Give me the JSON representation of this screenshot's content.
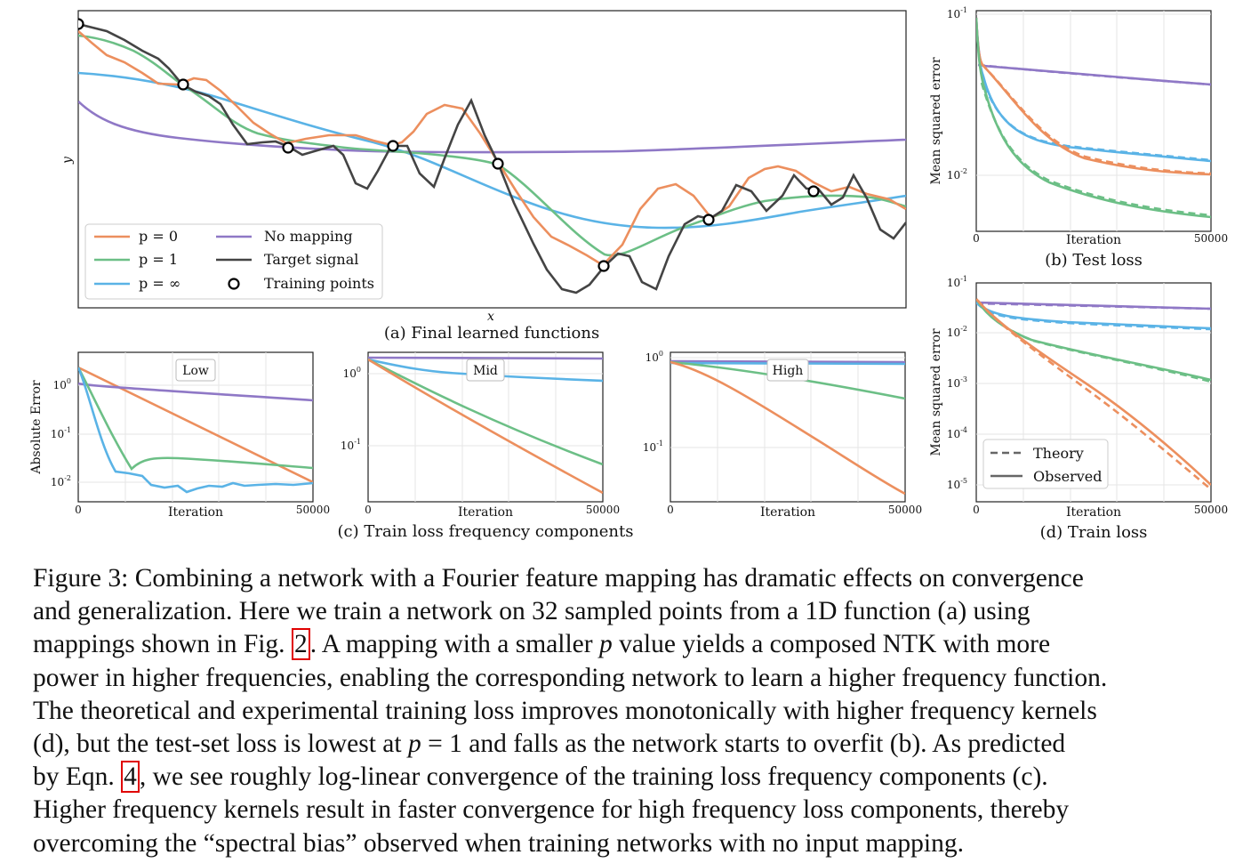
{
  "colors": {
    "p0": "#ec8f5e",
    "p1": "#6cbf86",
    "pinf": "#5ab3e6",
    "nomap": "#8f78c6",
    "target": "#444444",
    "frame": "#222222",
    "grid": "#e6e6e6",
    "ref_box": "#e00000"
  },
  "panel_a": {
    "xlabel": "x",
    "ylabel": "y",
    "caption": "(a) Final learned functions",
    "legend": [
      {
        "key": "p0",
        "label": "p = 0"
      },
      {
        "key": "nomap",
        "label": "No mapping"
      },
      {
        "key": "p1",
        "label": "p = 1"
      },
      {
        "key": "target",
        "label": "Target signal"
      },
      {
        "key": "pinf",
        "label": "p = ∞"
      },
      {
        "key": "points",
        "label": "Training points"
      }
    ]
  },
  "panel_b": {
    "ylabel": "Mean squared error",
    "xlabel": "Iteration",
    "caption": "(b) Test loss",
    "x_ticks": [
      "0",
      "50000"
    ],
    "y_ticks": [
      {
        "label": "10",
        "exp": "-1"
      },
      {
        "label": "10",
        "exp": "-2"
      }
    ]
  },
  "panel_c": {
    "caption": "(c) Train loss frequency components",
    "ylabel": "Absolute Error",
    "xlabel": "Iteration",
    "x_ticks": [
      "0",
      "50000"
    ],
    "subplots": [
      {
        "title": "Low",
        "y_ticks": [
          {
            "label": "10",
            "exp": "0"
          },
          {
            "label": "10",
            "exp": "-1"
          },
          {
            "label": "10",
            "exp": "-2"
          }
        ]
      },
      {
        "title": "Mid",
        "y_ticks": [
          {
            "label": "10",
            "exp": "0"
          },
          {
            "label": "10",
            "exp": "-1"
          }
        ]
      },
      {
        "title": "High",
        "y_ticks": [
          {
            "label": "10",
            "exp": "0"
          },
          {
            "label": "10",
            "exp": "-1"
          }
        ]
      }
    ]
  },
  "panel_d": {
    "ylabel": "Mean squared error",
    "xlabel": "Iteration",
    "caption": "(d) Train loss",
    "x_ticks": [
      "0",
      "50000"
    ],
    "y_ticks": [
      {
        "label": "10",
        "exp": "-1"
      },
      {
        "label": "10",
        "exp": "-2"
      },
      {
        "label": "10",
        "exp": "-3"
      },
      {
        "label": "10",
        "exp": "-4"
      },
      {
        "label": "10",
        "exp": "-5"
      }
    ],
    "legend": [
      {
        "style": "dashed",
        "label": "Theory"
      },
      {
        "style": "solid",
        "label": "Observed"
      }
    ]
  },
  "caption": {
    "line1": "Figure 3: Combining a network with a Fourier feature mapping has dramatic effects on convergence",
    "line2": "and generalization.  Here we train a network on 32 sampled points from a 1D function (a) using",
    "line3_pre": "mappings shown in Fig. ",
    "line3_ref": "2",
    "line3_post": ". A mapping with a smaller ",
    "line3_var": "p",
    "line3_end": " value yields a composed NTK with more",
    "line4": "power in higher frequencies, enabling the corresponding network to learn a higher frequency function.",
    "line5": "The theoretical and experimental training loss improves monotonically with higher frequency kernels",
    "line6_pre": "(d), but the test-set loss is lowest at ",
    "line6_var": "p",
    "line6_post": " = 1 and falls as the network starts to overfit (b). As predicted",
    "line7_pre": "by Eqn. ",
    "line7_ref": "4",
    "line7_post": ", we see roughly log-linear convergence of the training loss frequency components (c).",
    "line8": "Higher frequency kernels result in faster convergence for high frequency loss components, thereby",
    "line9": "overcoming the “spectral bias” observed when training networks with no input mapping."
  }
}
